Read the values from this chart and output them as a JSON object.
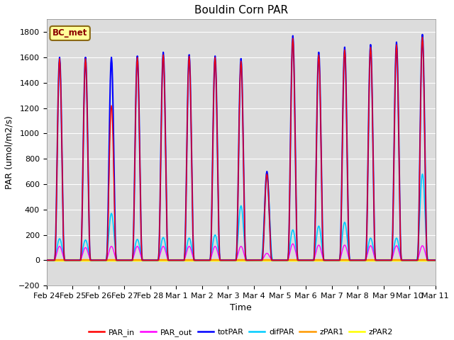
{
  "title": "Bouldin Corn PAR",
  "ylabel": "PAR (umol/m2/s)",
  "xlabel": "Time",
  "ylim": [
    -200,
    1900
  ],
  "yticks": [
    -200,
    0,
    200,
    400,
    600,
    800,
    1000,
    1200,
    1400,
    1600,
    1800
  ],
  "bg_color": "#dcdcdc",
  "fig_bg": "#ffffff",
  "label_box": "BC_met",
  "legend_entries": [
    "PAR_in",
    "PAR_out",
    "totPAR",
    "difPAR",
    "zPAR1",
    "zPAR2"
  ],
  "legend_colors": [
    "#ff0000",
    "#ff00ff",
    "#0000ff",
    "#00ccff",
    "#ff9900",
    "#ffff00"
  ],
  "num_days": 15,
  "day_labels": [
    "Feb 24",
    "Feb 25",
    "Feb 26",
    "Feb 27",
    "Feb 28",
    "Mar 1",
    "Mar 2",
    "Mar 3",
    "Mar 4",
    "Mar 5",
    "Mar 6",
    "Mar 7",
    "Mar 8",
    "Mar 9",
    "Mar 10",
    "Mar 11"
  ],
  "points_per_day": 48,
  "PAR_in_peaks": [
    1590,
    1590,
    1220,
    1600,
    1620,
    1610,
    1600,
    1570,
    680,
    1750,
    1620,
    1660,
    1680,
    1700,
    1760
  ],
  "PAR_out_peaks": [
    110,
    100,
    110,
    110,
    110,
    110,
    110,
    110,
    55,
    130,
    120,
    120,
    115,
    115,
    115
  ],
  "totPAR_peaks": [
    1600,
    1600,
    1600,
    1610,
    1640,
    1620,
    1610,
    1590,
    700,
    1770,
    1640,
    1680,
    1700,
    1720,
    1780
  ],
  "difPAR_peaks": [
    170,
    160,
    370,
    165,
    180,
    175,
    200,
    430,
    660,
    240,
    270,
    300,
    175,
    175,
    680
  ],
  "zPAR1_val": 0,
  "zPAR2_val": 0
}
